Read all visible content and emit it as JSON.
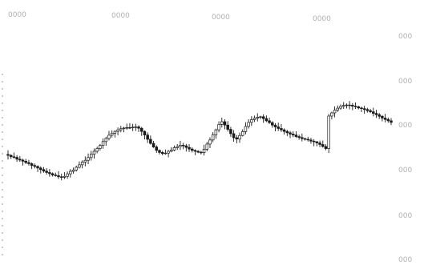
{
  "chart_data": {
    "type": "candlestick",
    "title": "",
    "x_tick_labels": [
      "0000",
      "0000",
      "0000",
      "0000"
    ],
    "y_tick_labels": [
      "000",
      "000",
      "000",
      "000",
      "000",
      "000"
    ],
    "ylim": [
      0,
      100
    ],
    "grid": false,
    "legend": "none",
    "colors": {
      "candle": "#1a1a1a",
      "axis_text": "#b0b0b0",
      "guide": "#9a9a9a"
    },
    "close_series": [
      46.8,
      46.2,
      45.9,
      45.1,
      44.7,
      44.2,
      43.6,
      43.1,
      42.3,
      41.9,
      41.2,
      40.5,
      39.8,
      39.2,
      38.7,
      38.1,
      37.8,
      37.3,
      37.1,
      37.5,
      38.6,
      39.7,
      40.3,
      41.5,
      42.6,
      43.8,
      44.6,
      45.8,
      47.3,
      48.6,
      49.8,
      51.2,
      52.9,
      54.3,
      55.7,
      56.6,
      57.4,
      58.1,
      58.6,
      58.9,
      59.1,
      59.0,
      59.3,
      59.4,
      58.8,
      57.4,
      55.8,
      53.9,
      52.1,
      50.5,
      49.0,
      48.1,
      47.6,
      47.8,
      48.6,
      49.1,
      50.2,
      50.7,
      51.3,
      51.0,
      50.3,
      49.6,
      49.0,
      48.6,
      48.2,
      48.0,
      49.5,
      51.8,
      53.6,
      55.9,
      58.1,
      60.5,
      61.7,
      60.2,
      58.3,
      56.4,
      54.6,
      54.0,
      55.6,
      57.3,
      59.6,
      61.4,
      62.6,
      63.3,
      63.7,
      63.9,
      63.1,
      62.1,
      61.3,
      60.2,
      59.4,
      58.7,
      58.1,
      57.4,
      56.8,
      56.2,
      55.8,
      55.1,
      54.7,
      54.2,
      53.9,
      53.6,
      53.1,
      52.8,
      52.3,
      51.6,
      50.7,
      49.8,
      64.2,
      65.6,
      66.8,
      67.7,
      68.5,
      68.9,
      69.1,
      69.0,
      68.6,
      68.3,
      67.8,
      67.5,
      67.1,
      66.6,
      66.1,
      65.4,
      64.8,
      64.1,
      63.3,
      62.7,
      62.1,
      61.4
    ]
  }
}
